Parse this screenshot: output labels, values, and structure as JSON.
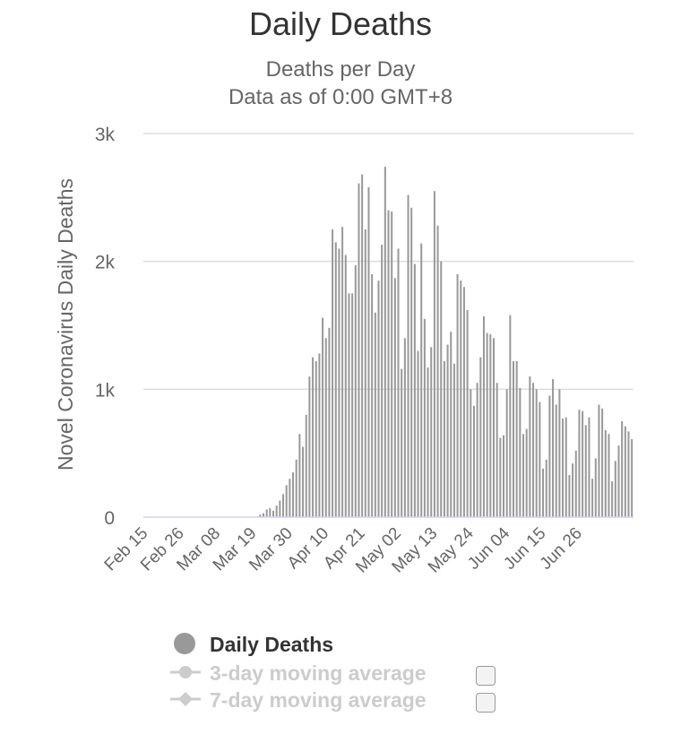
{
  "title": "Daily Deaths",
  "subtitle": "Deaths per Day",
  "subtitle2": "Data as of 0:00 GMT+8",
  "colors": {
    "bar": "#999999",
    "grid": "#dddddd",
    "text": "#666666",
    "muted": "#cccccc"
  },
  "legend": {
    "items": [
      {
        "label": "Daily Deaths",
        "active": true,
        "icon": "circle-marker-icon"
      },
      {
        "label": "3-day moving average",
        "active": false,
        "icon": "circle-line-marker-icon"
      },
      {
        "label": "7-day moving average",
        "active": false,
        "icon": "diamond-line-marker-icon"
      }
    ]
  },
  "chart_data": {
    "type": "bar",
    "title": "Daily Deaths",
    "subtitle": "Deaths per Day",
    "ylabel": "Novel Coronavirus Daily Deaths",
    "xlabel": "",
    "ylim": [
      0,
      3000
    ],
    "yticks": [
      0,
      1000,
      2000,
      3000
    ],
    "ytick_labels": [
      "0",
      "1k",
      "2k",
      "3k"
    ],
    "xtick_labels": [
      "Feb 15",
      "Feb 26",
      "Mar 08",
      "Mar 19",
      "Mar 30",
      "Apr 10",
      "Apr 21",
      "May 02",
      "May 13",
      "May 24",
      "Jun 04",
      "Jun 15",
      "Jun 26"
    ],
    "grid": true,
    "legend_position": "bottom",
    "series": [
      {
        "name": "Daily Deaths",
        "start": "Feb 15",
        "values": [
          0,
          0,
          0,
          0,
          0,
          0,
          0,
          0,
          0,
          0,
          0,
          0,
          0,
          0,
          0,
          0,
          0,
          0,
          0,
          0,
          0,
          0,
          0,
          0,
          0,
          0,
          0,
          0,
          0,
          0,
          0,
          0,
          0,
          0,
          0,
          20,
          30,
          60,
          70,
          50,
          90,
          130,
          180,
          250,
          300,
          350,
          450,
          650,
          550,
          800,
          1100,
          1250,
          1220,
          1280,
          1560,
          1400,
          1480,
          2250,
          2150,
          2100,
          2270,
          2050,
          1750,
          1750,
          1970,
          2610,
          2680,
          2250,
          2580,
          1900,
          1600,
          1850,
          2130,
          2740,
          2400,
          2390,
          1870,
          2100,
          1160,
          1400,
          2520,
          2420,
          1980,
          1300,
          2140,
          1550,
          1170,
          1330,
          2550,
          2280,
          2000,
          1220,
          1350,
          1450,
          1200,
          1900,
          1850,
          1800,
          1620,
          1000,
          870,
          1050,
          1250,
          1570,
          1440,
          1430,
          1400,
          1050,
          620,
          640,
          1000,
          1580,
          1220,
          1220,
          1010,
          650,
          690,
          1100,
          1050,
          1000,
          900,
          380,
          450,
          950,
          1080,
          880,
          1000,
          770,
          780,
          330,
          420,
          520,
          840,
          830,
          720,
          780,
          300,
          460,
          880,
          850,
          680,
          650,
          280,
          440,
          560,
          750,
          710,
          670,
          610
        ]
      }
    ]
  }
}
